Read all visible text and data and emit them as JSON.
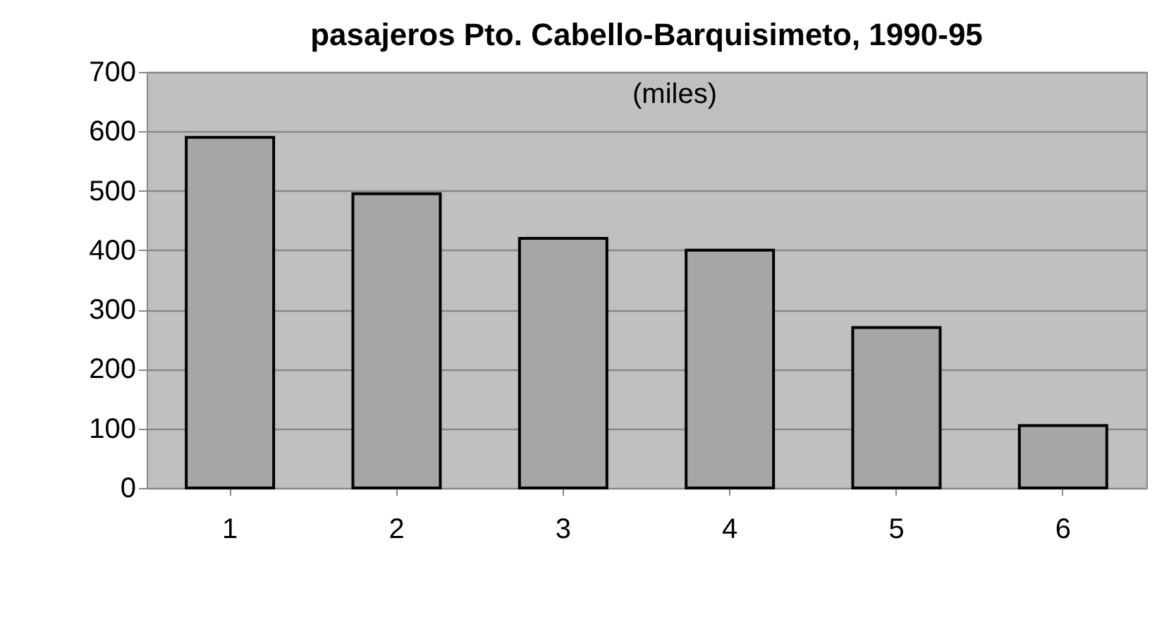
{
  "chart_data": {
    "type": "bar",
    "title": "pasajeros Pto. Cabello-Barquisimeto, 1990-95",
    "subtitle": "(miles)",
    "categories": [
      "1",
      "2",
      "3",
      "4",
      "5",
      "6"
    ],
    "values": [
      590,
      495,
      420,
      400,
      270,
      105
    ],
    "color": "#a6a6a6",
    "ylim": [
      0,
      700
    ],
    "yticks": [
      0,
      100,
      200,
      300,
      400,
      500,
      600,
      700
    ],
    "grid": "y"
  }
}
